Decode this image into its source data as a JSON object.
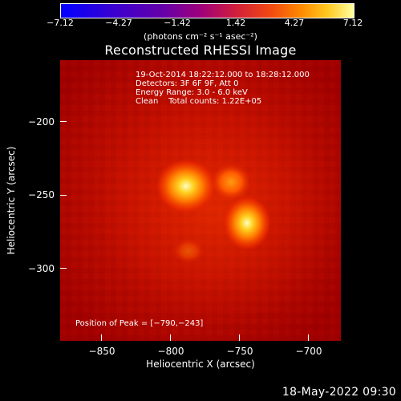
{
  "colorbar": {
    "ticks": [
      "−7.12",
      "−4.27",
      "−1.42",
      "1.42",
      "4.27",
      "7.12"
    ],
    "units": "(photons cm⁻² s⁻¹ asec⁻²)"
  },
  "title": "Reconstructed RHESSI Image",
  "info": {
    "line1": "19-Oct-2014 18:22:12.000 to 18:28:12.000",
    "line2": "Detectors: 3F 6F 9F, Att 0",
    "line3": "Energy Range: 3.0 - 6.0 keV",
    "line4": "Clean    Total counts: 1.22E+05"
  },
  "peak": "Position of Peak = [−790,−243]",
  "axes": {
    "xlabel": "Heliocentric X (arcsec)",
    "ylabel": "Heliocentric Y (arcsec)",
    "xticks": [
      "−850",
      "−800",
      "−750",
      "−700"
    ],
    "yticks": [
      "−200",
      "−250",
      "−300"
    ]
  },
  "timestamp": "18-May-2022 09:30",
  "colors": {
    "background": "#000000",
    "plot_base": "#9c0000",
    "text": "#ffffff"
  }
}
